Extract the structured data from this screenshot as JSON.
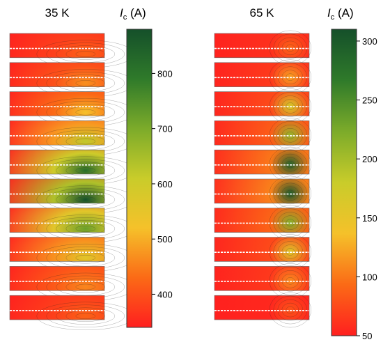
{
  "chart_data": [
    {
      "type": "heatmap",
      "title": "35 K",
      "colorbar": {
        "label": "I",
        "label_sub": "c",
        "label_unit": " (A)",
        "min": 340,
        "max": 880,
        "ticks": [
          400,
          500,
          600,
          700,
          800
        ],
        "tick_labels": [
          "400",
          "500",
          "600",
          "700",
          "800"
        ]
      },
      "colormap": [
        "#ff1f1f",
        "#fb6a16",
        "#f5c12a",
        "#c9cc2a",
        "#7cab2a",
        "#2f7a2a",
        "#15502a"
      ],
      "rows": 10,
      "peak": {
        "u": 0.8,
        "v": 0.85
      },
      "row_peak_values": [
        420,
        470,
        520,
        620,
        820,
        880,
        720,
        560,
        460,
        420
      ],
      "row_edge_values": [
        380,
        400,
        430,
        480,
        600,
        640,
        560,
        470,
        410,
        380
      ]
    },
    {
      "type": "heatmap",
      "title": "65 K",
      "colorbar": {
        "label": "I",
        "label_sub": "c",
        "label_unit": " (A)",
        "min": 50,
        "max": 310,
        "ticks": [
          50,
          100,
          150,
          200,
          250,
          300
        ],
        "tick_labels": [
          "50",
          "100",
          "150",
          "200",
          "250",
          "300"
        ]
      },
      "colormap": [
        "#ff1f1f",
        "#fb6a16",
        "#f5c12a",
        "#c9cc2a",
        "#7cab2a",
        "#2f7a2a",
        "#15502a"
      ],
      "rows": 10,
      "peak": {
        "u": 0.8,
        "v": 0.6
      },
      "row_peak_values": [
        90,
        120,
        170,
        210,
        290,
        300,
        220,
        160,
        110,
        80
      ],
      "row_edge_values": [
        60,
        65,
        75,
        85,
        100,
        105,
        90,
        75,
        65,
        55
      ]
    }
  ]
}
